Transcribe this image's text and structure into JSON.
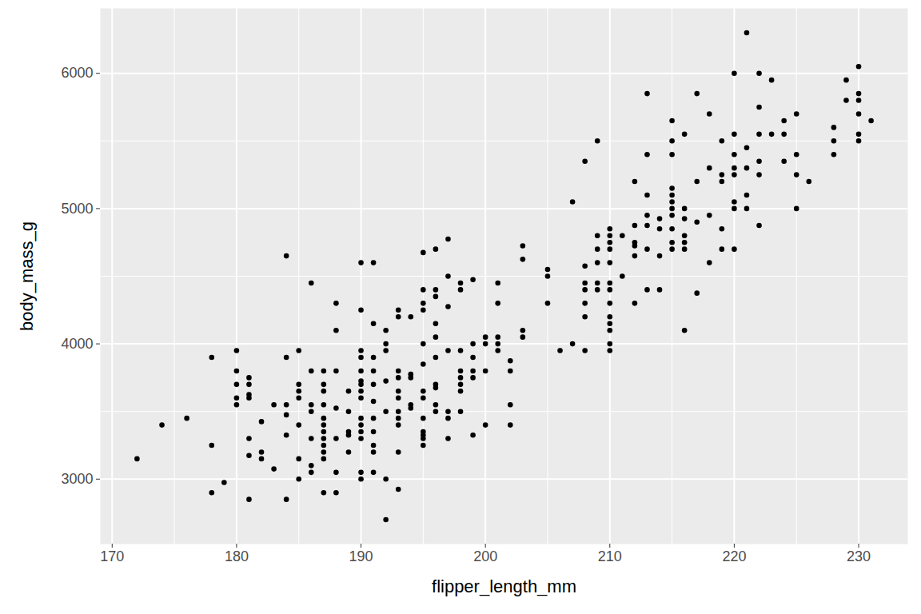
{
  "chart_data": {
    "type": "scatter",
    "x_label": "flipper_length_mm",
    "y_label": "body_mass_g",
    "color": "#000000",
    "marker": "circle",
    "grid": true,
    "xlim": [
      169.05,
      233.95
    ],
    "xticks": [
      170,
      180,
      190,
      200,
      210,
      220,
      230
    ],
    "ylim": [
      2520,
      6480
    ],
    "yticks": [
      3000,
      4000,
      5000,
      6000
    ],
    "x": [
      172,
      174,
      176,
      178,
      178,
      178,
      179,
      180,
      180,
      180,
      180,
      180,
      181,
      181,
      181,
      181,
      181,
      181,
      181,
      182,
      182,
      182,
      183,
      183,
      184,
      184,
      184,
      184,
      184,
      184,
      185,
      185,
      185,
      185,
      185,
      185,
      185,
      186,
      186,
      186,
      186,
      186,
      186,
      186,
      187,
      187,
      187,
      187,
      187,
      187,
      187,
      187,
      187,
      187,
      187,
      187,
      188,
      188,
      188,
      188,
      188,
      188,
      188,
      189,
      189,
      189,
      189,
      189,
      190,
      190,
      190,
      190,
      190,
      190,
      190,
      190,
      190,
      190,
      190,
      190,
      190,
      190,
      190,
      191,
      191,
      191,
      191,
      191,
      191,
      191,
      191,
      191,
      191,
      191,
      192,
      192,
      192,
      192,
      192,
      192,
      192,
      193,
      193,
      193,
      193,
      193,
      193,
      193,
      193,
      193,
      193,
      193,
      194,
      194,
      194,
      194,
      194,
      195,
      195,
      195,
      195,
      195,
      195,
      195,
      195,
      195,
      195,
      195,
      195,
      195,
      196,
      196,
      196,
      196,
      196,
      196,
      196,
      196,
      196,
      196,
      197,
      197,
      197,
      197,
      197,
      197,
      197,
      198,
      198,
      198,
      198,
      198,
      198,
      198,
      198,
      199,
      199,
      199,
      199,
      199,
      199,
      200,
      200,
      200,
      200,
      201,
      201,
      201,
      201,
      201,
      202,
      202,
      202,
      202,
      203,
      203,
      203,
      203,
      205,
      205,
      205,
      206,
      207,
      207,
      208,
      208,
      208,
      208,
      208,
      208,
      208,
      209,
      209,
      209,
      209,
      209,
      209,
      210,
      210,
      210,
      210,
      210,
      210,
      210,
      210,
      210,
      210,
      210,
      210,
      210,
      211,
      211,
      212,
      212,
      212,
      212,
      212,
      212,
      213,
      213,
      213,
      213,
      213,
      213,
      213,
      214,
      214,
      214,
      214,
      215,
      215,
      215,
      215,
      215,
      215,
      215,
      215,
      215,
      215,
      215,
      216,
      216,
      216,
      216,
      216,
      216,
      216,
      217,
      217,
      217,
      217,
      218,
      218,
      218,
      218,
      219,
      219,
      219,
      219,
      219,
      220,
      220,
      220,
      220,
      220,
      220,
      220,
      220,
      221,
      221,
      221,
      221,
      221,
      222,
      222,
      222,
      222,
      222,
      222,
      223,
      223,
      224,
      224,
      224,
      225,
      225,
      225,
      225,
      226,
      228,
      228,
      228,
      229,
      229,
      230,
      230,
      230,
      230,
      230,
      230,
      231
    ],
    "values": [
      3150,
      3400,
      3450,
      3900,
      3250,
      2900,
      2975,
      3950,
      3800,
      3700,
      3600,
      3550,
      3750,
      3700,
      3625,
      3600,
      3300,
      3175,
      2850,
      3425,
      3200,
      3150,
      3550,
      3075,
      4650,
      3900,
      3550,
      3475,
      3325,
      2850,
      3950,
      3700,
      3650,
      3600,
      3400,
      3150,
      3000,
      4450,
      3800,
      3550,
      3500,
      3300,
      3100,
      3050,
      3800,
      3700,
      3650,
      3550,
      3450,
      3400,
      3350,
      3300,
      3250,
      3200,
      3150,
      2900,
      4300,
      4100,
      3800,
      3525,
      3300,
      3050,
      2900,
      3650,
      3500,
      3350,
      3325,
      3200,
      4600,
      4250,
      3950,
      3900,
      3800,
      3725,
      3700,
      3650,
      3600,
      3450,
      3400,
      3350,
      3300,
      3050,
      3000,
      4600,
      4150,
      3900,
      3800,
      3700,
      3575,
      3450,
      3350,
      3250,
      3200,
      3050,
      4100,
      4000,
      3950,
      3725,
      3500,
      3000,
      2700,
      4250,
      4200,
      3800,
      3750,
      3650,
      3600,
      3500,
      3450,
      3400,
      3200,
      2925,
      4200,
      3775,
      3750,
      3550,
      3525,
      4675,
      4400,
      4300,
      4250,
      4000,
      3850,
      3650,
      3600,
      3450,
      3350,
      3325,
      3300,
      3250,
      4700,
      4400,
      4350,
      4150,
      4050,
      3900,
      3700,
      3675,
      3550,
      3500,
      4775,
      4500,
      4275,
      3950,
      3500,
      3450,
      3300,
      4450,
      4400,
      3950,
      3800,
      3750,
      3700,
      3650,
      3500,
      4475,
      4000,
      3900,
      3800,
      3750,
      3325,
      4050,
      4000,
      3800,
      3400,
      4450,
      4300,
      4050,
      4000,
      3950,
      3875,
      3800,
      3550,
      3400,
      4725,
      4625,
      4100,
      4050,
      4550,
      4500,
      4300,
      3950,
      5050,
      4000,
      5350,
      4575,
      4450,
      4400,
      4300,
      4200,
      3950,
      5500,
      4800,
      4700,
      4600,
      4450,
      4400,
      4850,
      4800,
      4750,
      4700,
      4600,
      4450,
      4400,
      4300,
      4200,
      4150,
      4100,
      4000,
      3950,
      4800,
      4500,
      5200,
      4875,
      4750,
      4725,
      4650,
      4300,
      5850,
      5400,
      5100,
      4950,
      4875,
      4700,
      4400,
      4925,
      4850,
      4650,
      4400,
      5650,
      5500,
      5400,
      5150,
      5100,
      5050,
      5000,
      4950,
      4850,
      4750,
      4700,
      5550,
      5000,
      4925,
      4800,
      4750,
      4700,
      4100,
      5850,
      5200,
      4900,
      4375,
      5700,
      5300,
      4950,
      4600,
      5500,
      5250,
      5200,
      4850,
      4700,
      6000,
      5550,
      5400,
      5300,
      5250,
      5050,
      5000,
      4700,
      6300,
      5450,
      5300,
      5100,
      5000,
      6000,
      5750,
      5550,
      5350,
      5250,
      4875,
      5950,
      5550,
      5650,
      5550,
      5350,
      5700,
      5400,
      5250,
      5000,
      5200,
      5600,
      5500,
      5400,
      5950,
      5800,
      6050,
      5850,
      5800,
      5700,
      5550,
      5500,
      5650
    ]
  }
}
